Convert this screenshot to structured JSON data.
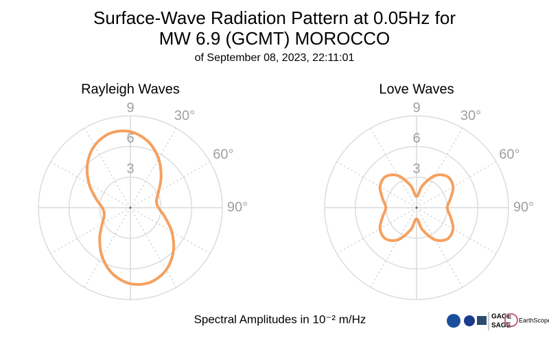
{
  "header": {
    "title": [
      "Surface-Wave Radiation Pattern at 0.05Hz for",
      "MW 6.9 (GCMT) MOROCCO"
    ],
    "subtitle": "of September 08, 2023, 22:11:01"
  },
  "footer": "Spectral Amplitudes in 10⁻² m/Hz",
  "logos": [
    "GAGE",
    "SAGE",
    "EarthScope"
  ],
  "chart_data": [
    {
      "type": "polar",
      "title": "Rayleigh Waves",
      "theta": [
        0,
        15,
        30,
        45,
        60,
        75,
        90,
        105,
        120,
        135,
        150,
        165,
        180,
        195,
        210,
        225,
        240,
        255,
        270,
        285,
        300,
        315,
        330,
        345
      ],
      "values": [
        7.45,
        6.71,
        5.53,
        4.25,
        3.19,
        2.64,
        2.75,
        3.49,
        4.67,
        5.96,
        7.02,
        7.56,
        7.45,
        6.71,
        5.53,
        4.25,
        3.19,
        2.64,
        2.75,
        3.49,
        4.67,
        5.96,
        7.02,
        7.56
      ],
      "color": "#f5a05f",
      "rlim": [
        0,
        9
      ],
      "rticks": [
        3,
        6,
        9
      ],
      "thetaticks": [
        {
          "value": 0,
          "label": null
        },
        {
          "value": 30,
          "label": "30°"
        },
        {
          "value": 60,
          "label": "60°"
        },
        {
          "value": 90,
          "label": "90°"
        },
        {
          "value": 120,
          "label": null
        },
        {
          "value": 150,
          "label": null
        },
        {
          "value": 180,
          "label": null
        },
        {
          "value": 210,
          "label": null
        },
        {
          "value": 240,
          "label": null
        },
        {
          "value": 270,
          "label": null
        },
        {
          "value": 300,
          "label": null
        },
        {
          "value": 330,
          "label": null
        }
      ]
    },
    {
      "type": "polar",
      "title": "Love Waves",
      "theta": [
        0,
        15,
        30,
        45,
        60,
        75,
        90,
        105,
        120,
        135,
        150,
        165,
        180,
        195,
        210,
        225,
        240,
        255,
        270,
        285,
        300,
        315,
        330,
        345
      ],
      "values": [
        1.1,
        2.25,
        3.63,
        4.3,
        4.13,
        3.44,
        3.0,
        3.44,
        4.13,
        4.3,
        3.63,
        2.25,
        1.1,
        2.25,
        3.63,
        4.3,
        4.13,
        3.44,
        3.0,
        3.44,
        4.13,
        4.3,
        3.63,
        2.25
      ],
      "color": "#f5a05f",
      "rlim": [
        0,
        9
      ],
      "rticks": [
        3,
        6,
        9
      ],
      "thetaticks": [
        {
          "value": 0,
          "label": null
        },
        {
          "value": 30,
          "label": "30°"
        },
        {
          "value": 60,
          "label": "60°"
        },
        {
          "value": 90,
          "label": "90°"
        },
        {
          "value": 120,
          "label": null
        },
        {
          "value": 150,
          "label": null
        },
        {
          "value": 180,
          "label": null
        },
        {
          "value": 210,
          "label": null
        },
        {
          "value": 240,
          "label": null
        },
        {
          "value": 270,
          "label": null
        },
        {
          "value": 300,
          "label": null
        },
        {
          "value": 330,
          "label": null
        }
      ]
    }
  ]
}
